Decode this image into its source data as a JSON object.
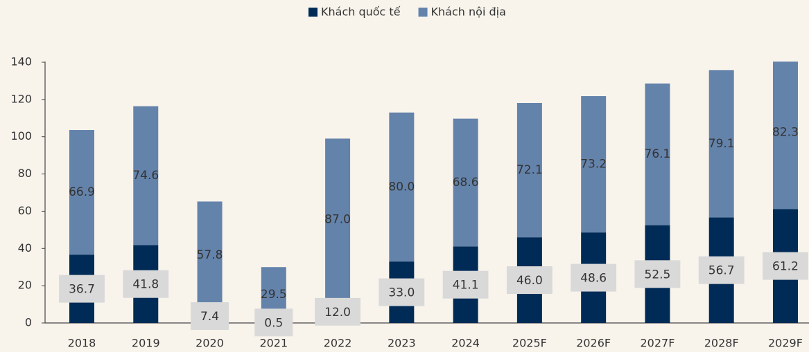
{
  "chart_data": {
    "type": "stacked_bar",
    "categories": [
      "2018",
      "2019",
      "2020",
      "2021",
      "2022",
      "2023",
      "2024",
      "2025F",
      "2026F",
      "2027F",
      "2028F",
      "2029F"
    ],
    "series": [
      {
        "name": "Khách quốc tế",
        "color": "#002b57",
        "values": [
          36.7,
          41.8,
          7.4,
          0.5,
          12.0,
          33.0,
          41.1,
          46.0,
          48.6,
          52.5,
          56.7,
          61.2
        ],
        "value_labels": [
          "36.7",
          "41.8",
          "7.4",
          "0.5",
          "12.0",
          "33.0",
          "41.1",
          "46.0",
          "48.6",
          "52.5",
          "56.7",
          "61.2"
        ]
      },
      {
        "name": "Khách nội địa",
        "color": "#6483ab",
        "values": [
          66.9,
          74.6,
          57.8,
          29.5,
          87.0,
          80.0,
          68.6,
          72.1,
          73.2,
          76.1,
          79.1,
          82.3
        ],
        "value_labels": [
          "66.9",
          "74.6",
          "57.8",
          "29.5",
          "87.0",
          "80.0",
          "68.6",
          "72.1",
          "73.2",
          "76.1",
          "79.1",
          "82.3"
        ]
      }
    ],
    "ylim": [
      0,
      140
    ],
    "yticks": [
      0,
      20,
      40,
      60,
      80,
      100,
      120,
      140
    ],
    "legend": "top"
  }
}
